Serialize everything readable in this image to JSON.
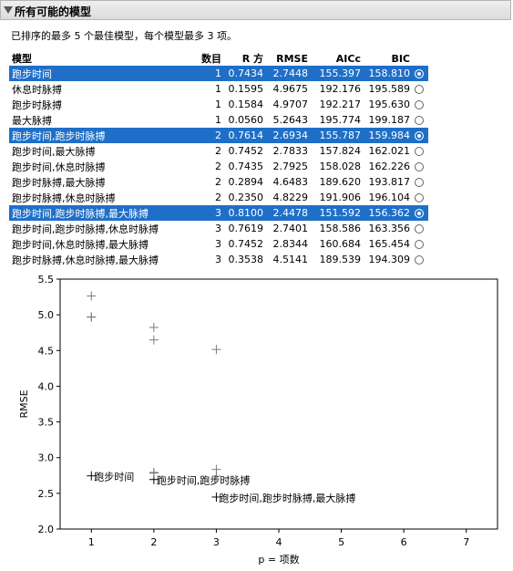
{
  "panel": {
    "title": "所有可能的模型",
    "subtitle": "已排序的最多 5 个最佳模型，每个模型最多 3 项。"
  },
  "table": {
    "headers": [
      "模型",
      "数目",
      "R 方",
      "RMSE",
      "AICc",
      "BIC"
    ],
    "rows": [
      {
        "model": "跑步时间",
        "n": "1",
        "r2": "0.7434",
        "rmse": "2.7448",
        "aicc": "155.397",
        "bic": "158.810",
        "selected": true
      },
      {
        "model": "休息时脉搏",
        "n": "1",
        "r2": "0.1595",
        "rmse": "4.9675",
        "aicc": "192.176",
        "bic": "195.589",
        "selected": false
      },
      {
        "model": "跑步时脉搏",
        "n": "1",
        "r2": "0.1584",
        "rmse": "4.9707",
        "aicc": "192.217",
        "bic": "195.630",
        "selected": false
      },
      {
        "model": "最大脉搏",
        "n": "1",
        "r2": "0.0560",
        "rmse": "5.2643",
        "aicc": "195.774",
        "bic": "199.187",
        "selected": false
      },
      {
        "model": "跑步时间,跑步时脉搏",
        "n": "2",
        "r2": "0.7614",
        "rmse": "2.6934",
        "aicc": "155.787",
        "bic": "159.984",
        "selected": true
      },
      {
        "model": "跑步时间,最大脉搏",
        "n": "2",
        "r2": "0.7452",
        "rmse": "2.7833",
        "aicc": "157.824",
        "bic": "162.021",
        "selected": false
      },
      {
        "model": "跑步时间,休息时脉搏",
        "n": "2",
        "r2": "0.7435",
        "rmse": "2.7925",
        "aicc": "158.028",
        "bic": "162.226",
        "selected": false
      },
      {
        "model": "跑步时脉搏,最大脉搏",
        "n": "2",
        "r2": "0.2894",
        "rmse": "4.6483",
        "aicc": "189.620",
        "bic": "193.817",
        "selected": false
      },
      {
        "model": "跑步时脉搏,休息时脉搏",
        "n": "2",
        "r2": "0.2350",
        "rmse": "4.8229",
        "aicc": "191.906",
        "bic": "196.104",
        "selected": false
      },
      {
        "model": "跑步时间,跑步时脉搏,最大脉搏",
        "n": "3",
        "r2": "0.8100",
        "rmse": "2.4478",
        "aicc": "151.592",
        "bic": "156.362",
        "selected": true
      },
      {
        "model": "跑步时间,跑步时脉搏,休息时脉搏",
        "n": "3",
        "r2": "0.7619",
        "rmse": "2.7401",
        "aicc": "158.586",
        "bic": "163.356",
        "selected": false
      },
      {
        "model": "跑步时间,休息时脉搏,最大脉搏",
        "n": "3",
        "r2": "0.7452",
        "rmse": "2.8344",
        "aicc": "160.684",
        "bic": "165.454",
        "selected": false
      },
      {
        "model": "跑步时脉搏,休息时脉搏,最大脉搏",
        "n": "3",
        "r2": "0.3538",
        "rmse": "4.5141",
        "aicc": "189.539",
        "bic": "194.309",
        "selected": false
      }
    ]
  },
  "colors": {
    "selection": "#1f6fc8",
    "marker": "#7a7a7a",
    "selected_marker": "#000000"
  },
  "chart_data": {
    "type": "scatter",
    "xlabel": "p = 项数",
    "ylabel": "RMSE",
    "xlim": [
      0.5,
      7.5
    ],
    "ylim": [
      2.0,
      5.5
    ],
    "xticks": [
      1,
      2,
      3,
      4,
      5,
      6,
      7
    ],
    "yticks": [
      2.0,
      2.5,
      3.0,
      3.5,
      4.0,
      4.5,
      5.0,
      5.5
    ],
    "grid": false,
    "points": [
      {
        "x": 1,
        "y": 2.7448,
        "label": "跑步时间",
        "selected": true
      },
      {
        "x": 1,
        "y": 4.9675,
        "selected": false
      },
      {
        "x": 1,
        "y": 4.9707,
        "selected": false
      },
      {
        "x": 1,
        "y": 5.2643,
        "selected": false
      },
      {
        "x": 2,
        "y": 2.6934,
        "label": "跑步时间,跑步时脉搏",
        "selected": true
      },
      {
        "x": 2,
        "y": 2.7833,
        "selected": false
      },
      {
        "x": 2,
        "y": 2.7925,
        "selected": false
      },
      {
        "x": 2,
        "y": 4.6483,
        "selected": false
      },
      {
        "x": 2,
        "y": 4.8229,
        "selected": false
      },
      {
        "x": 3,
        "y": 2.4478,
        "label": "跑步时间,跑步时脉搏,最大脉搏",
        "selected": true
      },
      {
        "x": 3,
        "y": 2.7401,
        "selected": false
      },
      {
        "x": 3,
        "y": 2.8344,
        "selected": false
      },
      {
        "x": 3,
        "y": 4.5141,
        "selected": false
      }
    ]
  }
}
